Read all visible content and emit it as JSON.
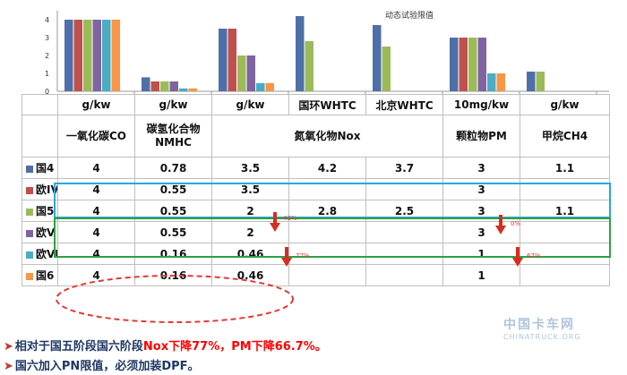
{
  "chart_data": {
    "type": "bar",
    "title": "动态试验限值",
    "yticks": [
      "0",
      "1",
      "2",
      "3",
      "4"
    ],
    "ylim": [
      0,
      4.5
    ],
    "series": [
      {
        "name": "国4",
        "color": "#4f6fa8"
      },
      {
        "name": "欧IV",
        "color": "#c0504d"
      },
      {
        "name": "国5",
        "color": "#9bbb59"
      },
      {
        "name": "欧V",
        "color": "#8064a2"
      },
      {
        "name": "欧VI",
        "color": "#4bacc6"
      },
      {
        "name": "国6",
        "color": "#f79646"
      }
    ],
    "groups": [
      {
        "unit": "g/kw",
        "name": "一氧化碳CO",
        "values": [
          4,
          4,
          4,
          4,
          4,
          4
        ]
      },
      {
        "unit": "g/kw",
        "name": "碳氢化合物NMHC",
        "values": [
          0.78,
          0.55,
          0.55,
          0.55,
          0.16,
          0.16
        ]
      },
      {
        "unit": "g/kw",
        "name": "氮氧化物Nox",
        "values": [
          3.5,
          3.5,
          2,
          2,
          0.46,
          0.46
        ]
      },
      {
        "unit": "国环WHTC",
        "name": "",
        "values": [
          4.2,
          null,
          2.8,
          null,
          null,
          null
        ]
      },
      {
        "unit": "北京WHTC",
        "name": "",
        "values": [
          3.7,
          null,
          2.5,
          null,
          null,
          null
        ]
      },
      {
        "unit": "10mg/kw",
        "name": "颗粒物PM",
        "values": [
          3,
          3,
          3,
          3,
          1,
          1
        ]
      },
      {
        "unit": "g/kw",
        "name": "甲烷CH4",
        "values": [
          1.1,
          null,
          1.1,
          null,
          null,
          null
        ]
      }
    ]
  },
  "table": {
    "units": [
      "g/kw",
      "g/kw",
      "g/kw",
      "国环WHTC",
      "北京WHTC",
      "10mg/kw",
      "g/kw"
    ],
    "headers": [
      "一氧化碳CO",
      "碳氢化合物NMHC",
      "",
      "氮氧化物Nox",
      "",
      "颗粒物PM",
      "甲烷CH4"
    ],
    "rows": [
      {
        "label": "国4",
        "color": "#4f6fa8",
        "cells": [
          "4",
          "0.78",
          "3.5",
          "4.2",
          "3.7",
          "3",
          "1.1"
        ]
      },
      {
        "label": "欧IV",
        "color": "#c0504d",
        "cells": [
          "4",
          "0.55",
          "3.5",
          "",
          "",
          "3",
          ""
        ]
      },
      {
        "label": "国5",
        "color": "#9bbb59",
        "cells": [
          "4",
          "0.55",
          "2",
          "2.8",
          "2.5",
          "3",
          "1.1"
        ]
      },
      {
        "label": "欧V",
        "color": "#8064a2",
        "cells": [
          "4",
          "0.55",
          "2",
          "",
          "",
          "3",
          ""
        ]
      },
      {
        "label": "欧VI",
        "color": "#4bacc6",
        "cells": [
          "4",
          "0.16",
          "0.46",
          "",
          "",
          "1",
          ""
        ]
      },
      {
        "label": "国6",
        "color": "#f79646",
        "cells": [
          "4",
          "0.16",
          "0.46",
          "",
          "",
          "1",
          ""
        ]
      }
    ]
  },
  "annotations": {
    "nox_drop_1": "43%",
    "pm_drop_1": "0%",
    "nox_drop_2": "77%",
    "pm_drop_2": "67%"
  },
  "notes": {
    "line1_prefix": "相对于国五阶段国六阶段",
    "line1_red": "Nox下降77%，PM下降66.7%。",
    "line2": "国六加入PN限值，必须加装DPF。"
  },
  "watermark": {
    "cn": "中国卡车网",
    "en": "CHINATRUCK.ORG"
  }
}
